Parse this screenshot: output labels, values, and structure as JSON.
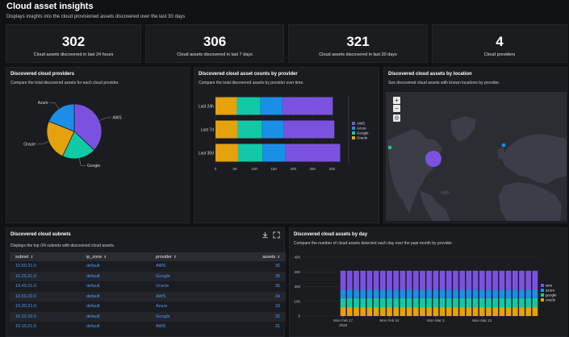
{
  "page": {
    "title": "Cloud asset insights",
    "subtitle": "Displays insights into the cloud provisioned assets discovered over the last 30 days"
  },
  "stats": [
    {
      "value": "302",
      "label": "Cloud assets discovered in last 24 hours"
    },
    {
      "value": "306",
      "label": "Cloud assets discovered in last 7 days"
    },
    {
      "value": "321",
      "label": "Cloud assets discovered in last 30 days"
    },
    {
      "value": "4",
      "label": "Cloud providers"
    }
  ],
  "providers_panel": {
    "title": "Discovered cloud providers",
    "description": "Compare the total discovered assets for each cloud provider."
  },
  "counts_panel": {
    "title": "Discovered cloud asset counts by provider",
    "description": "Compare the total discovered assets by provider over time."
  },
  "location_panel": {
    "title": "Discovered cloud assets by location",
    "description": "See discovered cloud assets with known locations by provider.",
    "zoom_in": "+",
    "zoom_out": "−",
    "reset": "◎"
  },
  "subnets_panel": {
    "title": "Discovered cloud subnets",
    "description": "Displays the top /24 subnets with discovered cloud assets.",
    "columns": [
      "subnet",
      "ip_zone",
      "provider",
      "assets"
    ],
    "rows": [
      [
        "10.50.21.0",
        "default",
        "AWS",
        "36"
      ],
      [
        "10.20.21.0",
        "default",
        "Google",
        "35"
      ],
      [
        "10.40.21.0",
        "default",
        "Oracle",
        "35"
      ],
      [
        "10.50.20.0",
        "default",
        "AWS",
        "34"
      ],
      [
        "10.30.21.0",
        "default",
        "Azure",
        "33"
      ],
      [
        "10.20.20.0",
        "default",
        "Google",
        "32"
      ],
      [
        "10.10.21.0",
        "default",
        "AWS",
        "31"
      ]
    ]
  },
  "byday_panel": {
    "title": "Discovered cloud assets by day",
    "description": "Compare the number of cloud assets detected each day over the past month by provider."
  },
  "colors": {
    "aws": "#7b52e0",
    "azure": "#1a8fe8",
    "google": "#12c9a5",
    "oracle": "#e6a20d"
  },
  "chart_data": [
    {
      "type": "pie",
      "title": "Discovered cloud providers",
      "categories": [
        "AWS",
        "Google",
        "Oracle",
        "Azure"
      ],
      "values": [
        37,
        20,
        24,
        19
      ]
    },
    {
      "type": "bar",
      "orientation": "horizontal",
      "stacked": true,
      "title": "Discovered cloud asset counts by provider",
      "categories": [
        "Last 24h",
        "Last 7d",
        "Last 30d"
      ],
      "series": [
        {
          "name": "Oracle",
          "values": [
            55,
            57,
            58
          ]
        },
        {
          "name": "Google",
          "values": [
            60,
            62,
            63
          ]
        },
        {
          "name": "Azure",
          "values": [
            57,
            57,
            59
          ]
        },
        {
          "name": "AWS",
          "values": [
            130,
            130,
            141
          ]
        }
      ],
      "xticks": [
        "0",
        "50",
        "100",
        "150",
        "200",
        "250",
        "300"
      ],
      "xlim": [
        0,
        320
      ],
      "legend": [
        "AWS",
        "Azure",
        "Google",
        "Oracle"
      ]
    },
    {
      "type": "bar",
      "stacked": true,
      "title": "Discovered cloud assets by day",
      "days": 30,
      "series": [
        {
          "name": "oracle",
          "value": 60
        },
        {
          "name": "google",
          "value": 62
        },
        {
          "name": "azure",
          "value": 58
        },
        {
          "name": "aws",
          "value": 128
        }
      ],
      "yticks": [
        "0",
        "100",
        "200",
        "300",
        "400"
      ],
      "ylim": [
        0,
        400
      ],
      "xticks": [
        "Mon Feb 17",
        "Mon Feb 24",
        "Mon Mar 3",
        "Mon Mar 10"
      ],
      "year_label": "2025",
      "legend": [
        "aws",
        "azure",
        "google",
        "oracle"
      ]
    }
  ]
}
